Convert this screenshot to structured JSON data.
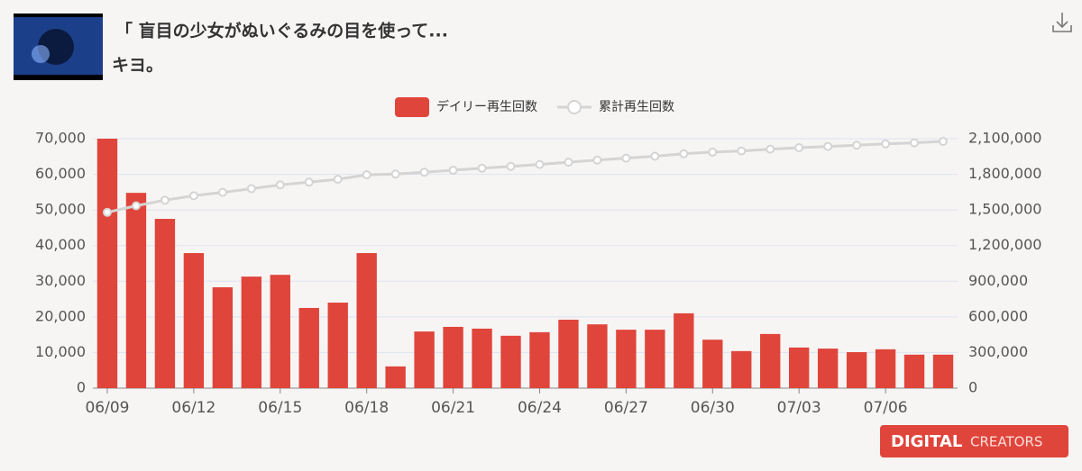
{
  "chart_data": {
    "type": "bar",
    "title": "「 盲目の少女がぬいぐるみの目を使って...",
    "subtitle": "キヨ。",
    "categories": [
      "06/09",
      null,
      null,
      "06/12",
      null,
      null,
      "06/15",
      null,
      null,
      "06/18",
      null,
      null,
      "06/21",
      null,
      null,
      "06/24",
      null,
      null,
      "06/27",
      null,
      null,
      "06/30",
      null,
      null,
      "07/03",
      null,
      null,
      "07/06",
      null,
      null
    ],
    "series": [
      {
        "name": "デイリー再生回数",
        "type": "bar",
        "color": "#e0453b",
        "values": [
          70000,
          54800,
          47500,
          37900,
          28300,
          31300,
          31800,
          22500,
          24000,
          37900,
          6100,
          15900,
          17200,
          16700,
          14700,
          15700,
          19200,
          17900,
          16400,
          16400,
          21000,
          13600,
          10400,
          15200,
          11400,
          11100,
          10100,
          10900,
          9400,
          9400
        ]
      },
      {
        "name": "累計再生回数",
        "type": "line",
        "axis": "y2",
        "color": "#d4d4d4",
        "values": [
          1480000,
          1535000,
          1582000,
          1620000,
          1648000,
          1679000,
          1711000,
          1734000,
          1758000,
          1796000,
          1802000,
          1818000,
          1835000,
          1852000,
          1867000,
          1883000,
          1902000,
          1920000,
          1936000,
          1952000,
          1973000,
          1987000,
          1997000,
          2012000,
          2024000,
          2035000,
          2045000,
          2056000,
          2065000,
          2077000
        ]
      }
    ],
    "ylim": [
      0,
      70000
    ],
    "yticks": [
      0,
      {
        "value": 10000,
        "label": "10,000"
      },
      {
        "value": 20000,
        "label": "20,000"
      },
      {
        "value": 30000,
        "label": "30,000"
      },
      {
        "value": 40000,
        "label": "40,000"
      },
      {
        "value": 50000,
        "label": "50,000"
      },
      {
        "value": 60000,
        "label": "60,000"
      },
      {
        "value": 70000,
        "label": "70,000"
      }
    ],
    "y2lim": [
      0,
      2100000
    ],
    "y2ticks": [
      0,
      {
        "value": 300000,
        "label": "300,000"
      },
      {
        "value": 600000,
        "label": "600,000"
      },
      {
        "value": 900000,
        "label": "900,000"
      },
      {
        "value": 1200000,
        "label": "1,200,000"
      },
      {
        "value": 1500000,
        "label": "1,500,000"
      },
      {
        "value": 1800000,
        "label": "1,800,000"
      },
      {
        "value": 2100000,
        "label": "2,100,000"
      }
    ],
    "grid": true
  },
  "watermark": {
    "brand": "DIGITAL",
    "tag": "CREATORS"
  }
}
